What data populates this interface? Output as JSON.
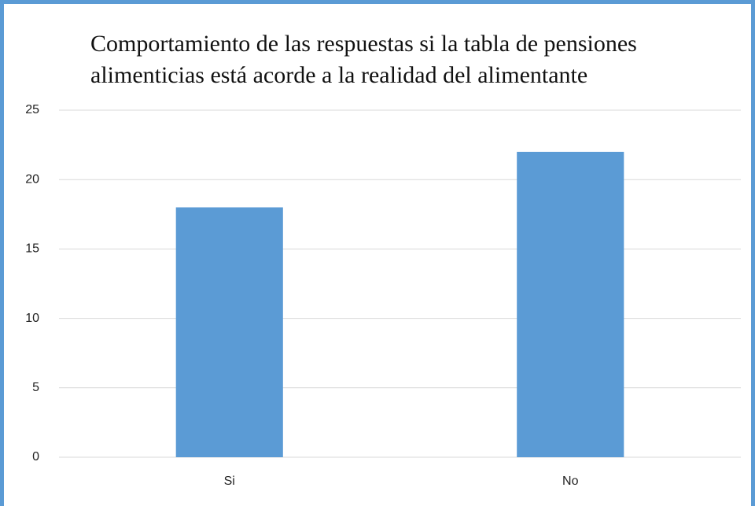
{
  "chart_data": {
    "type": "bar",
    "title": "Comportamiento de las respuestas si la tabla de pensiones alimenticias está acorde a la realidad del alimentante",
    "categories": [
      "Si",
      "No"
    ],
    "values": [
      18,
      22
    ],
    "color": "#5b9bd5",
    "ylim": [
      0,
      25
    ],
    "yticks": [
      0,
      5,
      10,
      15,
      20,
      25
    ],
    "grid": true
  }
}
